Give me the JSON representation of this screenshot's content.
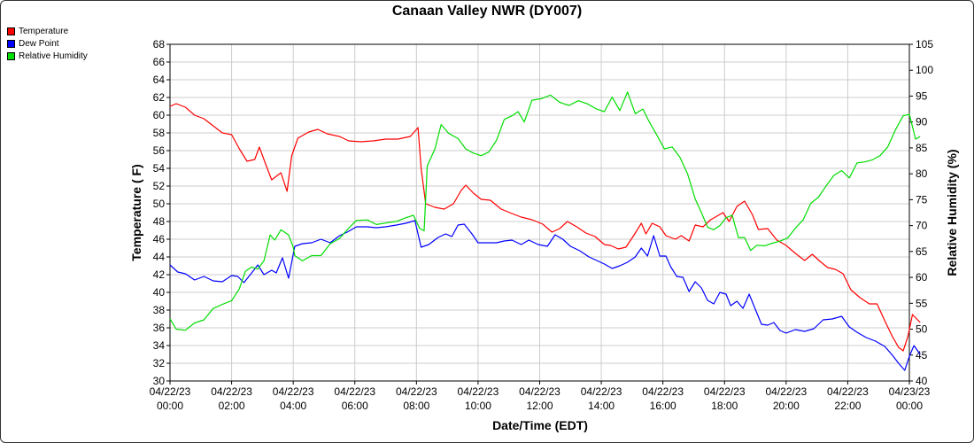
{
  "chart_data": {
    "type": "line",
    "title": "Canaan Valley NWR (DY007)",
    "xlabel": "Date/Time (EDT)",
    "ylabel": "Temperature ( F)",
    "y2label": "Relative Humidity (%)",
    "ylim": [
      30,
      68
    ],
    "y2lim": [
      40,
      105
    ],
    "yticks": [
      30,
      32,
      34,
      36,
      38,
      40,
      42,
      44,
      46,
      48,
      50,
      52,
      54,
      56,
      58,
      60,
      62,
      64,
      66,
      68
    ],
    "y2ticks": [
      40,
      45,
      50,
      55,
      60,
      65,
      70,
      75,
      80,
      85,
      90,
      95,
      100,
      105
    ],
    "xlim": [
      0,
      24
    ],
    "xticks": [
      {
        "h": 0,
        "date": "04/22/23",
        "time": "00:00"
      },
      {
        "h": 2,
        "date": "04/22/23",
        "time": "02:00"
      },
      {
        "h": 4,
        "date": "04/22/23",
        "time": "04:00"
      },
      {
        "h": 6,
        "date": "04/22/23",
        "time": "06:00"
      },
      {
        "h": 8,
        "date": "04/22/23",
        "time": "08:00"
      },
      {
        "h": 10,
        "date": "04/22/23",
        "time": "10:00"
      },
      {
        "h": 12,
        "date": "04/22/23",
        "time": "12:00"
      },
      {
        "h": 14,
        "date": "04/22/23",
        "time": "14:00"
      },
      {
        "h": 16,
        "date": "04/22/23",
        "time": "16:00"
      },
      {
        "h": 18,
        "date": "04/22/23",
        "time": "18:00"
      },
      {
        "h": 20,
        "date": "04/22/23",
        "time": "20:00"
      },
      {
        "h": 22,
        "date": "04/22/23",
        "time": "22:00"
      },
      {
        "h": 24,
        "date": "04/23/23",
        "time": "00:00"
      }
    ],
    "grid": true,
    "legend_position": "top-left",
    "series": [
      {
        "name": "Temperature",
        "axis": "left",
        "color": "#ff0000",
        "points": [
          [
            0,
            61
          ],
          [
            0.2,
            61.3
          ],
          [
            0.5,
            60.9
          ],
          [
            0.8,
            60
          ],
          [
            1.1,
            59.6
          ],
          [
            1.4,
            58.8
          ],
          [
            1.7,
            58
          ],
          [
            2,
            57.8
          ],
          [
            2.25,
            56.2
          ],
          [
            2.5,
            54.8
          ],
          [
            2.75,
            55
          ],
          [
            2.9,
            56.4
          ],
          [
            3.1,
            54.5
          ],
          [
            3.3,
            52.7
          ],
          [
            3.6,
            53.5
          ],
          [
            3.8,
            51.4
          ],
          [
            3.95,
            55.4
          ],
          [
            4.15,
            57.4
          ],
          [
            4.5,
            58.1
          ],
          [
            4.8,
            58.4
          ],
          [
            5.1,
            57.9
          ],
          [
            5.5,
            57.6
          ],
          [
            5.8,
            57.1
          ],
          [
            6.2,
            57
          ],
          [
            6.6,
            57.1
          ],
          [
            7,
            57.3
          ],
          [
            7.4,
            57.3
          ],
          [
            7.8,
            57.6
          ],
          [
            8.05,
            58.6
          ],
          [
            8.15,
            54
          ],
          [
            8.3,
            50
          ],
          [
            8.6,
            49.6
          ],
          [
            8.9,
            49.4
          ],
          [
            9.2,
            50
          ],
          [
            9.45,
            51.5
          ],
          [
            9.6,
            52.1
          ],
          [
            9.85,
            51.2
          ],
          [
            10.1,
            50.5
          ],
          [
            10.4,
            50.4
          ],
          [
            10.75,
            49.4
          ],
          [
            11.1,
            48.9
          ],
          [
            11.4,
            48.5
          ],
          [
            11.75,
            48.2
          ],
          [
            12.1,
            47.7
          ],
          [
            12.4,
            46.8
          ],
          [
            12.65,
            47.2
          ],
          [
            12.9,
            48
          ],
          [
            13.2,
            47.4
          ],
          [
            13.5,
            46.7
          ],
          [
            13.8,
            46.3
          ],
          [
            14.1,
            45.4
          ],
          [
            14.3,
            45.3
          ],
          [
            14.55,
            44.9
          ],
          [
            14.8,
            45.1
          ],
          [
            15.05,
            46.4
          ],
          [
            15.3,
            47.8
          ],
          [
            15.45,
            46.6
          ],
          [
            15.65,
            47.8
          ],
          [
            15.9,
            47.4
          ],
          [
            16.1,
            46.4
          ],
          [
            16.4,
            46
          ],
          [
            16.6,
            46.4
          ],
          [
            16.85,
            45.8
          ],
          [
            17.05,
            47.6
          ],
          [
            17.3,
            47.4
          ],
          [
            17.55,
            48.2
          ],
          [
            17.75,
            48.6
          ],
          [
            17.95,
            49
          ],
          [
            18.15,
            48
          ],
          [
            18.4,
            49.7
          ],
          [
            18.65,
            50.3
          ],
          [
            18.9,
            48.8
          ],
          [
            19.1,
            47.1
          ],
          [
            19.4,
            47.2
          ],
          [
            19.7,
            45.9
          ],
          [
            20,
            45.3
          ],
          [
            20.3,
            44.4
          ],
          [
            20.6,
            43.6
          ],
          [
            20.85,
            44.3
          ],
          [
            21.1,
            43.5
          ],
          [
            21.35,
            42.8
          ],
          [
            21.6,
            42.6
          ],
          [
            21.85,
            42.1
          ],
          [
            22.1,
            40.3
          ],
          [
            22.4,
            39.4
          ],
          [
            22.7,
            38.7
          ],
          [
            22.95,
            38.7
          ],
          [
            23.2,
            36.8
          ],
          [
            23.45,
            35
          ],
          [
            23.65,
            33.8
          ],
          [
            23.8,
            33.4
          ],
          [
            23.95,
            35
          ],
          [
            24.1,
            37.5
          ],
          [
            24.35,
            36.6
          ]
        ]
      },
      {
        "name": "Dew Point",
        "axis": "left",
        "color": "#0000ff",
        "points": [
          [
            0,
            43.1
          ],
          [
            0.25,
            42.3
          ],
          [
            0.5,
            42.1
          ],
          [
            0.8,
            41.4
          ],
          [
            1.1,
            41.8
          ],
          [
            1.4,
            41.3
          ],
          [
            1.7,
            41.2
          ],
          [
            2,
            41.9
          ],
          [
            2.2,
            41.8
          ],
          [
            2.4,
            41.1
          ],
          [
            2.65,
            42.2
          ],
          [
            2.85,
            43.1
          ],
          [
            3.05,
            42
          ],
          [
            3.3,
            42.5
          ],
          [
            3.45,
            42.2
          ],
          [
            3.65,
            43.9
          ],
          [
            3.85,
            41.6
          ],
          [
            4.05,
            45.2
          ],
          [
            4.3,
            45.5
          ],
          [
            4.6,
            45.6
          ],
          [
            4.9,
            46
          ],
          [
            5.2,
            45.6
          ],
          [
            5.5,
            46.4
          ],
          [
            5.75,
            46.8
          ],
          [
            6.05,
            47.4
          ],
          [
            6.4,
            47.4
          ],
          [
            6.7,
            47.3
          ],
          [
            7,
            47.4
          ],
          [
            7.35,
            47.6
          ],
          [
            7.65,
            47.8
          ],
          [
            7.95,
            48.1
          ],
          [
            8.15,
            45.1
          ],
          [
            8.4,
            45.4
          ],
          [
            8.7,
            46.2
          ],
          [
            8.95,
            46.6
          ],
          [
            9.15,
            46.3
          ],
          [
            9.35,
            47.6
          ],
          [
            9.55,
            47.7
          ],
          [
            9.8,
            46.6
          ],
          [
            10,
            45.6
          ],
          [
            10.3,
            45.6
          ],
          [
            10.6,
            45.6
          ],
          [
            10.85,
            45.8
          ],
          [
            11.1,
            45.9
          ],
          [
            11.4,
            45.4
          ],
          [
            11.65,
            45.9
          ],
          [
            11.95,
            45.4
          ],
          [
            12.25,
            45.2
          ],
          [
            12.5,
            46.5
          ],
          [
            12.75,
            46
          ],
          [
            13,
            45.2
          ],
          [
            13.3,
            44.7
          ],
          [
            13.6,
            44
          ],
          [
            13.85,
            43.6
          ],
          [
            14.1,
            43.2
          ],
          [
            14.35,
            42.7
          ],
          [
            14.6,
            43
          ],
          [
            14.85,
            43.4
          ],
          [
            15.1,
            44
          ],
          [
            15.3,
            45
          ],
          [
            15.5,
            44.1
          ],
          [
            15.7,
            46.4
          ],
          [
            15.9,
            44.1
          ],
          [
            16.1,
            44.1
          ],
          [
            16.25,
            42.9
          ],
          [
            16.45,
            41.8
          ],
          [
            16.65,
            41.7
          ],
          [
            16.85,
            40.1
          ],
          [
            17.05,
            41.2
          ],
          [
            17.25,
            40.5
          ],
          [
            17.45,
            39.1
          ],
          [
            17.65,
            38.7
          ],
          [
            17.85,
            40
          ],
          [
            18.05,
            39.8
          ],
          [
            18.2,
            38.5
          ],
          [
            18.4,
            39
          ],
          [
            18.6,
            38.2
          ],
          [
            18.8,
            39.8
          ],
          [
            19,
            38.1
          ],
          [
            19.2,
            36.4
          ],
          [
            19.4,
            36.3
          ],
          [
            19.6,
            36.6
          ],
          [
            19.8,
            35.7
          ],
          [
            20,
            35.4
          ],
          [
            20.3,
            35.8
          ],
          [
            20.6,
            35.6
          ],
          [
            20.9,
            35.9
          ],
          [
            21.2,
            36.9
          ],
          [
            21.5,
            37
          ],
          [
            21.8,
            37.3
          ],
          [
            22.05,
            36.1
          ],
          [
            22.3,
            35.5
          ],
          [
            22.6,
            34.9
          ],
          [
            22.9,
            34.5
          ],
          [
            23.2,
            33.9
          ],
          [
            23.45,
            32.9
          ],
          [
            23.65,
            32
          ],
          [
            23.85,
            31.2
          ],
          [
            24,
            32.8
          ],
          [
            24.15,
            34
          ],
          [
            24.35,
            33
          ]
        ]
      },
      {
        "name": "Relative Humidity",
        "axis": "right",
        "color": "#00dd00",
        "points": [
          [
            0,
            52
          ],
          [
            0.2,
            50
          ],
          [
            0.5,
            49.8
          ],
          [
            0.8,
            51.2
          ],
          [
            1.1,
            51.8
          ],
          [
            1.4,
            54
          ],
          [
            1.7,
            54.8
          ],
          [
            2,
            55.5
          ],
          [
            2.25,
            57.8
          ],
          [
            2.45,
            61.2
          ],
          [
            2.65,
            62
          ],
          [
            2.85,
            61.6
          ],
          [
            3.05,
            63.2
          ],
          [
            3.25,
            68.2
          ],
          [
            3.4,
            67.2
          ],
          [
            3.6,
            69.2
          ],
          [
            3.85,
            68.2
          ],
          [
            4,
            65.8
          ],
          [
            4.05,
            64.2
          ],
          [
            4.3,
            63.2
          ],
          [
            4.6,
            64.2
          ],
          [
            4.9,
            64.2
          ],
          [
            5.2,
            66.5
          ],
          [
            5.5,
            67.5
          ],
          [
            5.8,
            69.5
          ],
          [
            6.05,
            71
          ],
          [
            6.4,
            71.1
          ],
          [
            6.7,
            70.2
          ],
          [
            7,
            70.5
          ],
          [
            7.35,
            70.8
          ],
          [
            7.65,
            71.5
          ],
          [
            7.9,
            72
          ],
          [
            8.1,
            69.5
          ],
          [
            8.25,
            69
          ],
          [
            8.35,
            81.5
          ],
          [
            8.6,
            84.8
          ],
          [
            8.8,
            89.5
          ],
          [
            9.05,
            87.8
          ],
          [
            9.35,
            86.8
          ],
          [
            9.6,
            84.8
          ],
          [
            9.85,
            84
          ],
          [
            10.1,
            83.5
          ],
          [
            10.35,
            84.2
          ],
          [
            10.6,
            86.5
          ],
          [
            10.85,
            90.5
          ],
          [
            11.1,
            91.2
          ],
          [
            11.3,
            92
          ],
          [
            11.5,
            90
          ],
          [
            11.75,
            94.2
          ],
          [
            12.05,
            94.5
          ],
          [
            12.35,
            95.2
          ],
          [
            12.65,
            93.8
          ],
          [
            12.95,
            93.2
          ],
          [
            13.25,
            94.1
          ],
          [
            13.55,
            93.5
          ],
          [
            13.85,
            92.5
          ],
          [
            14.1,
            92
          ],
          [
            14.35,
            94.8
          ],
          [
            14.6,
            92.2
          ],
          [
            14.85,
            95.8
          ],
          [
            15.1,
            91.6
          ],
          [
            15.35,
            92.5
          ],
          [
            15.55,
            90.1
          ],
          [
            15.8,
            87.5
          ],
          [
            16.05,
            84.8
          ],
          [
            16.3,
            85.2
          ],
          [
            16.55,
            83.2
          ],
          [
            16.8,
            80
          ],
          [
            17.05,
            75.1
          ],
          [
            17.25,
            72.5
          ],
          [
            17.45,
            69.7
          ],
          [
            17.65,
            69.2
          ],
          [
            17.85,
            70
          ],
          [
            18.05,
            71.5
          ],
          [
            18.25,
            72
          ],
          [
            18.45,
            67.7
          ],
          [
            18.65,
            67.7
          ],
          [
            18.85,
            65.2
          ],
          [
            19.05,
            66.2
          ],
          [
            19.3,
            66.1
          ],
          [
            19.55,
            66.6
          ],
          [
            19.8,
            67
          ],
          [
            20.05,
            67.6
          ],
          [
            20.3,
            69.5
          ],
          [
            20.55,
            71.1
          ],
          [
            20.8,
            74.3
          ],
          [
            21.05,
            75.5
          ],
          [
            21.3,
            77.7
          ],
          [
            21.55,
            79.7
          ],
          [
            21.8,
            80.6
          ],
          [
            22.05,
            79.2
          ],
          [
            22.3,
            82.1
          ],
          [
            22.55,
            82.3
          ],
          [
            22.8,
            82.7
          ],
          [
            23.05,
            83.5
          ],
          [
            23.3,
            85.2
          ],
          [
            23.55,
            88.5
          ],
          [
            23.8,
            91.2
          ],
          [
            24,
            91.5
          ],
          [
            24.2,
            86.7
          ],
          [
            24.35,
            87.2
          ]
        ]
      }
    ]
  }
}
